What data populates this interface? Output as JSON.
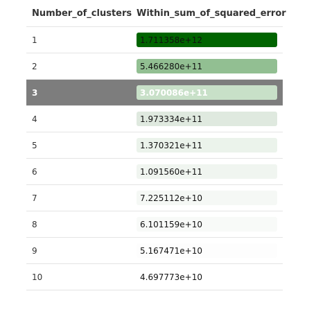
{
  "chart_data": {
    "type": "table",
    "columns": [
      "Number_of_clusters",
      "Within_sum_of_squared_error"
    ],
    "rows": [
      {
        "clusters": "1",
        "wss": "1.711358e+12",
        "fill": "#006400"
      },
      {
        "clusters": "2",
        "wss": "5.466280e+11",
        "fill": "#92bf92"
      },
      {
        "clusters": "3",
        "wss": "3.070086e+11",
        "fill": "#c8e0c8"
      },
      {
        "clusters": "4",
        "wss": "1.973334e+11",
        "fill": "#dfe9df"
      },
      {
        "clusters": "5",
        "wss": "1.370321e+11",
        "fill": "#ebf3eb"
      },
      {
        "clusters": "6",
        "wss": "1.091560e+11",
        "fill": "#f0f5f0"
      },
      {
        "clusters": "7",
        "wss": "7.225112e+10",
        "fill": "#f5f8f5"
      },
      {
        "clusters": "8",
        "wss": "6.101159e+10",
        "fill": "#f8faf8"
      },
      {
        "clusters": "9",
        "wss": "5.167471e+10",
        "fill": "#fdfdfd"
      },
      {
        "clusters": "10",
        "wss": "4.697773e+10",
        "fill": "#ffffff"
      }
    ],
    "selected_row": "3",
    "text_color_dark_fill": "#111111"
  }
}
